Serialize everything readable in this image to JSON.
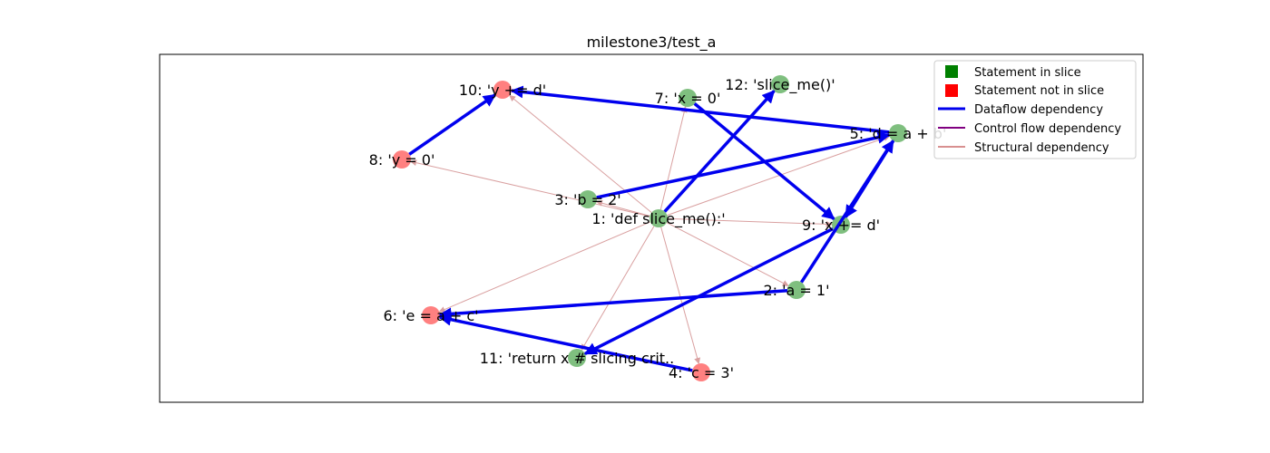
{
  "chart_data": {
    "type": "graph",
    "title": "milestone3/test_a",
    "node_colors": {
      "in_slice": "#7fbf7f",
      "not_in_slice": "#ff8080"
    },
    "edge_colors": {
      "dataflow": "#0000ee",
      "control": "#800080",
      "structural": "#d9a0a0"
    },
    "nodes": [
      {
        "id": 1,
        "label": "1: 'def slice_me():'",
        "in_slice": true
      },
      {
        "id": 2,
        "label": "2: 'a = 1'",
        "in_slice": true
      },
      {
        "id": 3,
        "label": "3: 'b = 2'",
        "in_slice": true
      },
      {
        "id": 4,
        "label": "4: 'c = 3'",
        "in_slice": false
      },
      {
        "id": 5,
        "label": "5: 'd = a + b'",
        "in_slice": true
      },
      {
        "id": 6,
        "label": "6: 'e = a + c'",
        "in_slice": false
      },
      {
        "id": 7,
        "label": "7: 'x = 0'",
        "in_slice": true
      },
      {
        "id": 8,
        "label": "8: 'y = 0'",
        "in_slice": false
      },
      {
        "id": 9,
        "label": "9: 'x += d'",
        "in_slice": true
      },
      {
        "id": 10,
        "label": "10: 'y += d'",
        "in_slice": false
      },
      {
        "id": 11,
        "label": "11: 'return x # slicing crit..",
        "in_slice": true
      },
      {
        "id": 12,
        "label": "12: 'slice_me()'",
        "in_slice": true
      }
    ],
    "edges": [
      {
        "from": 1,
        "to": 2,
        "type": "structural"
      },
      {
        "from": 1,
        "to": 3,
        "type": "structural"
      },
      {
        "from": 1,
        "to": 4,
        "type": "structural"
      },
      {
        "from": 1,
        "to": 5,
        "type": "structural"
      },
      {
        "from": 1,
        "to": 6,
        "type": "structural"
      },
      {
        "from": 1,
        "to": 7,
        "type": "structural"
      },
      {
        "from": 1,
        "to": 8,
        "type": "structural"
      },
      {
        "from": 1,
        "to": 9,
        "type": "structural"
      },
      {
        "from": 1,
        "to": 10,
        "type": "structural"
      },
      {
        "from": 1,
        "to": 11,
        "type": "structural"
      },
      {
        "from": 1,
        "to": 12,
        "type": "dataflow"
      },
      {
        "from": 3,
        "to": 5,
        "type": "dataflow"
      },
      {
        "from": 2,
        "to": 5,
        "type": "dataflow"
      },
      {
        "from": 2,
        "to": 6,
        "type": "dataflow"
      },
      {
        "from": 4,
        "to": 6,
        "type": "dataflow"
      },
      {
        "from": 5,
        "to": 9,
        "type": "dataflow"
      },
      {
        "from": 5,
        "to": 10,
        "type": "dataflow"
      },
      {
        "from": 7,
        "to": 9,
        "type": "dataflow"
      },
      {
        "from": 8,
        "to": 10,
        "type": "dataflow"
      },
      {
        "from": 9,
        "to": 11,
        "type": "dataflow"
      }
    ],
    "legend": {
      "placement": "top-right",
      "items": [
        {
          "label": "Statement in slice",
          "kind": "square",
          "color": "#008000"
        },
        {
          "label": "Statement not in slice",
          "kind": "square",
          "color": "#ff0000"
        },
        {
          "label": "Dataflow dependency",
          "kind": "line",
          "color": "#0000ee"
        },
        {
          "label": "Control flow dependency",
          "kind": "line",
          "color": "#800080"
        },
        {
          "label": "Structural dependency",
          "kind": "line",
          "color": "#b22222"
        }
      ]
    }
  }
}
